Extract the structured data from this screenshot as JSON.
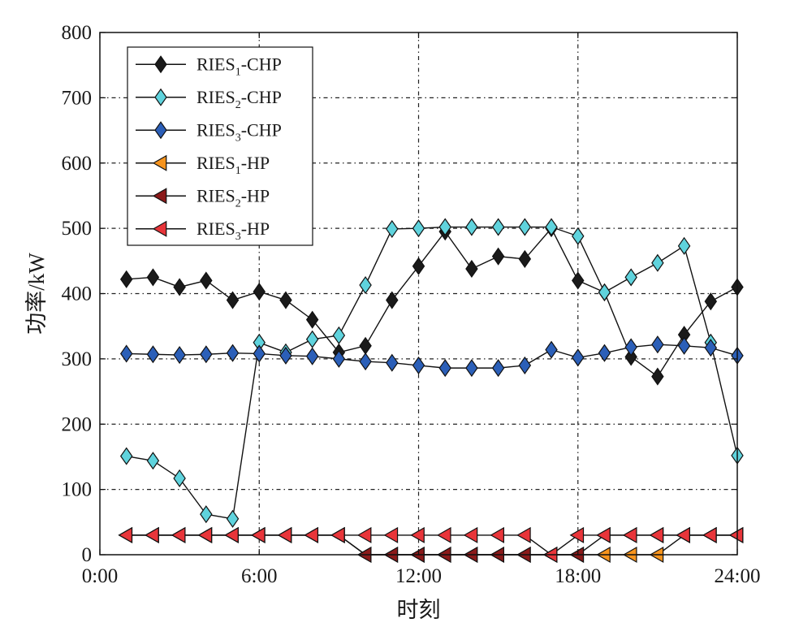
{
  "chart_data": {
    "type": "line",
    "title": "",
    "xlabel": "时刻",
    "ylabel": "功率/kW",
    "xlim": [
      0,
      24
    ],
    "ylim": [
      0,
      800
    ],
    "x_ticks": [
      0,
      6,
      12,
      18,
      24
    ],
    "x_tick_labels": [
      "0:00",
      "6:00",
      "12:00",
      "18:00",
      "24:00"
    ],
    "y_ticks": [
      0,
      100,
      200,
      300,
      400,
      500,
      600,
      700,
      800
    ],
    "y_tick_labels": [
      "0",
      "100",
      "200",
      "300",
      "400",
      "500",
      "600",
      "700",
      "800"
    ],
    "grid": true,
    "legend_position": "top-left",
    "x": [
      1,
      2,
      3,
      4,
      5,
      6,
      7,
      8,
      9,
      10,
      11,
      12,
      13,
      14,
      15,
      16,
      17,
      18,
      19,
      20,
      21,
      22,
      23,
      24
    ],
    "series": [
      {
        "name": "RIES1-CHP",
        "label_base": "RIES",
        "label_sub": "1",
        "label_suffix": "-CHP",
        "marker": "diamond",
        "color": "#1a1a1a",
        "values": [
          422,
          425,
          410,
          420,
          390,
          403,
          390,
          360,
          310,
          320,
          390,
          442,
          495,
          438,
          457,
          453,
          500,
          420,
          402,
          303,
          273,
          337,
          388,
          410
        ]
      },
      {
        "name": "RIES2-CHP",
        "label_base": "RIES",
        "label_sub": "2",
        "label_suffix": "-CHP",
        "marker": "diamond",
        "color": "#5fd3dd",
        "values": [
          151,
          144,
          117,
          62,
          55,
          325,
          310,
          330,
          336,
          413,
          499,
          500,
          502,
          502,
          502,
          502,
          502,
          488,
          402,
          425,
          447,
          473,
          325,
          152
        ]
      },
      {
        "name": "RIES3-CHP",
        "label_base": "RIES",
        "label_sub": "3",
        "label_suffix": "-CHP",
        "marker": "diamond",
        "color": "#2b5fb8",
        "values": [
          308,
          307,
          306,
          307,
          309,
          308,
          305,
          304,
          300,
          296,
          294,
          290,
          286,
          286,
          286,
          290,
          314,
          302,
          309,
          318,
          322,
          320,
          317,
          305
        ]
      },
      {
        "name": "RIES1-HP",
        "label_base": "RIES",
        "label_sub": "1",
        "label_suffix": "-HP",
        "marker": "triangle-left",
        "color": "#f7941d",
        "values": [
          30,
          30,
          30,
          30,
          30,
          30,
          30,
          30,
          30,
          0,
          0,
          0,
          0,
          0,
          0,
          0,
          0,
          0,
          0,
          0,
          0,
          30,
          30,
          30
        ]
      },
      {
        "name": "RIES2-HP",
        "label_base": "RIES",
        "label_sub": "2",
        "label_suffix": "-HP",
        "marker": "triangle-left",
        "color": "#8b1a1a",
        "values": [
          30,
          30,
          30,
          30,
          30,
          30,
          30,
          30,
          30,
          0,
          0,
          0,
          0,
          0,
          0,
          0,
          0,
          0,
          30,
          30,
          30,
          30,
          30,
          30
        ]
      },
      {
        "name": "RIES3-HP",
        "label_base": "RIES",
        "label_sub": "3",
        "label_suffix": "-HP",
        "marker": "triangle-left",
        "color": "#e8353a",
        "values": [
          30,
          30,
          30,
          30,
          30,
          30,
          30,
          30,
          30,
          30,
          30,
          30,
          30,
          30,
          30,
          30,
          0,
          30,
          30,
          30,
          30,
          30,
          30,
          30
        ]
      }
    ]
  }
}
